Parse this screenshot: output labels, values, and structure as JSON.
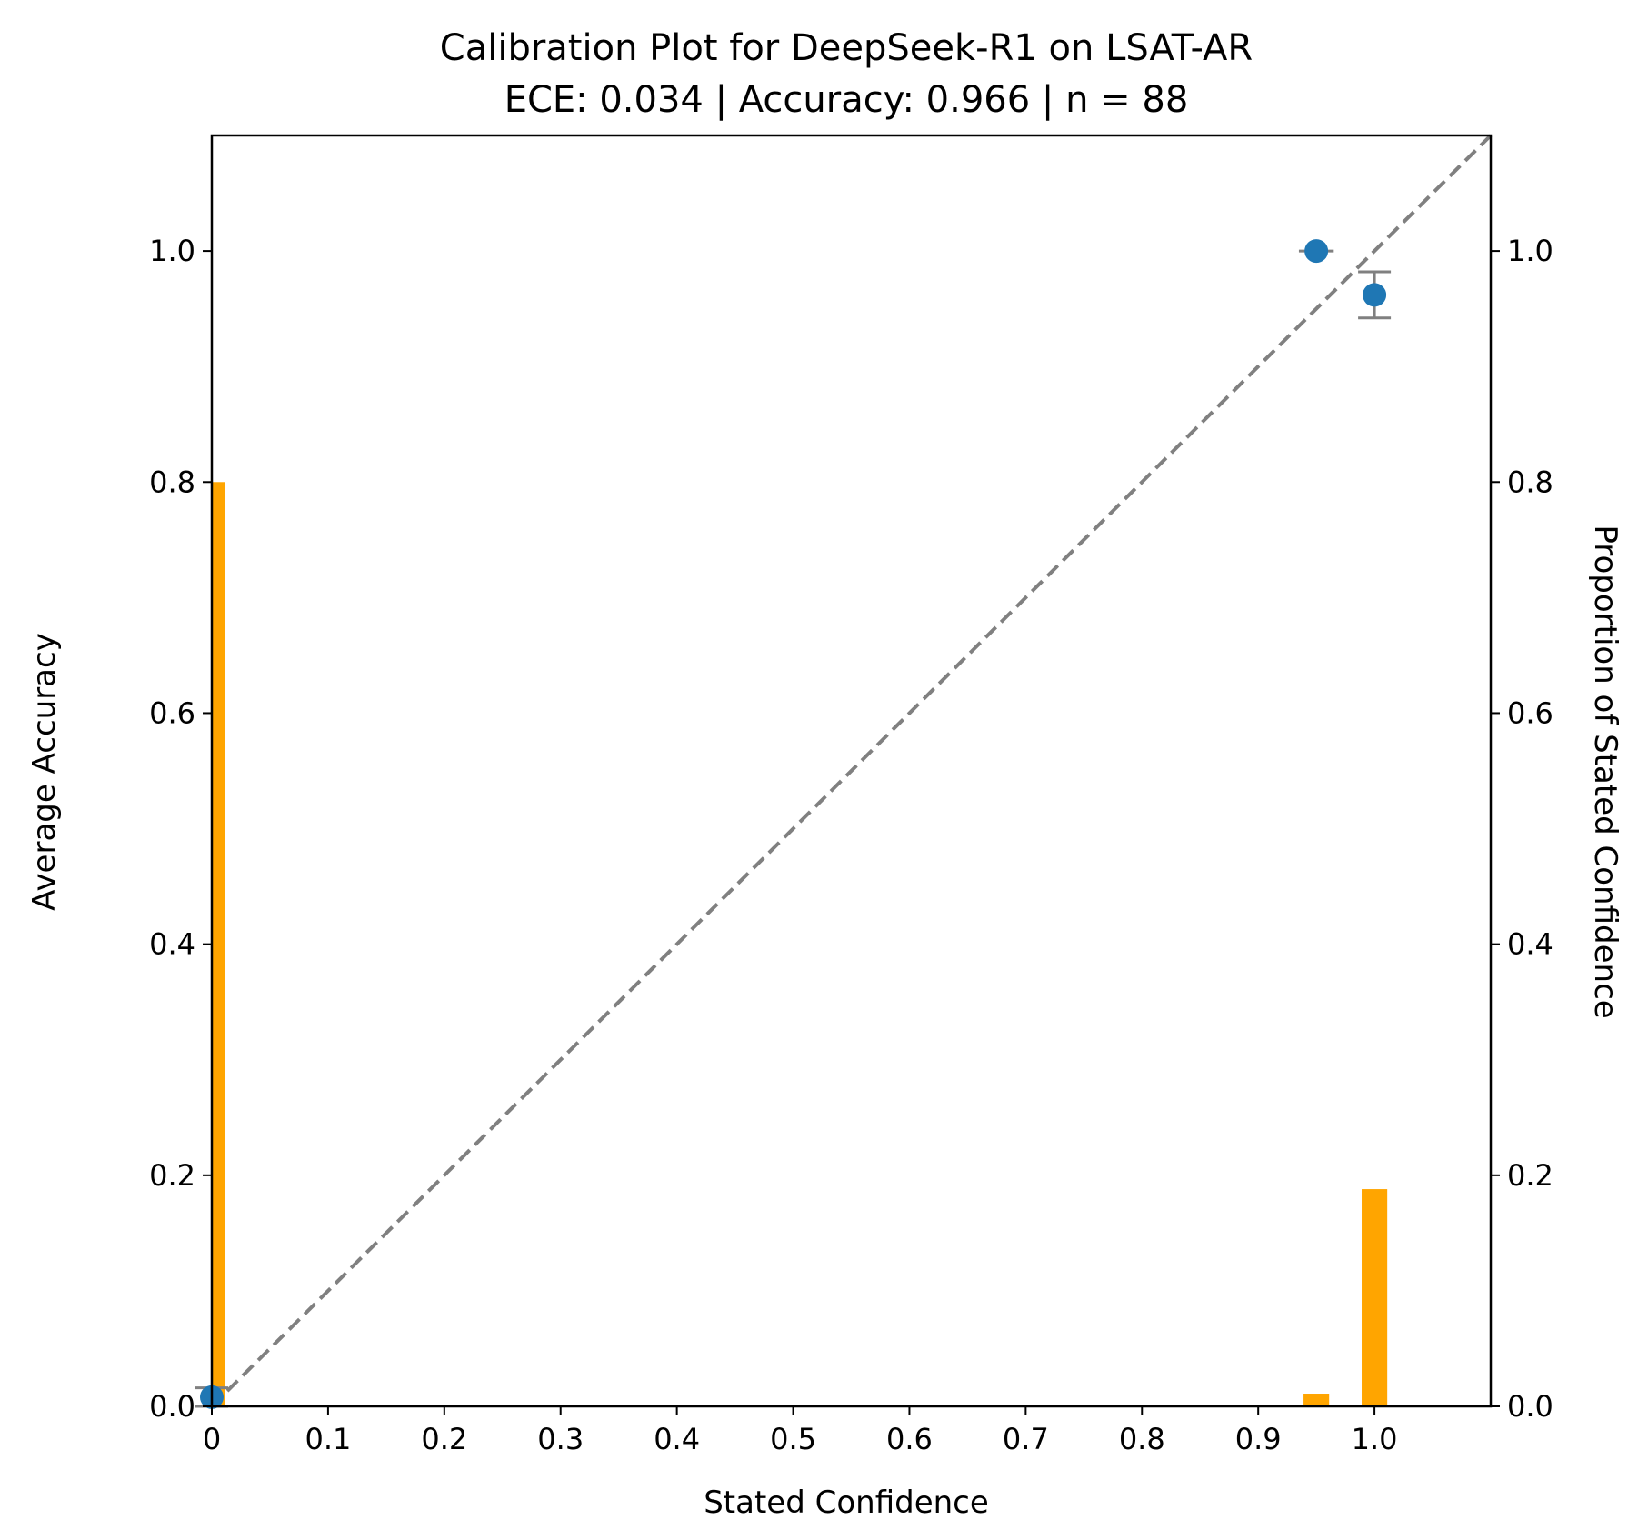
{
  "chart_data": {
    "type": "scatter",
    "title": "Calibration Plot for DeepSeek-R1 on LSAT-AR",
    "subtitle": "ECE: 0.034 | Accuracy: 0.966 | n = 88",
    "xlabel": "Stated Confidence",
    "ylabel": "Average Accuracy",
    "ylabel_right": "Proportion of Stated Confidence",
    "xlim": [
      0,
      1.1
    ],
    "ylim": [
      0,
      1.1
    ],
    "ylim_right": [
      0,
      1.1
    ],
    "x_ticks": [
      "0",
      "0.1",
      "0.2",
      "0.3",
      "0.4",
      "0.5",
      "0.6",
      "0.7",
      "0.8",
      "0.9",
      "1.0"
    ],
    "y_ticks": [
      "0.0",
      "0.2",
      "0.4",
      "0.6",
      "0.8",
      "1.0"
    ],
    "y_ticks_right": [
      "0.0",
      "0.2",
      "0.4",
      "0.6",
      "0.8",
      "1.0"
    ],
    "grid": false,
    "reference_line": {
      "from": [
        0,
        0
      ],
      "to": [
        1.1,
        1.1
      ],
      "style": "dashed",
      "color": "#808080"
    },
    "calibration_points": [
      {
        "x": 0.0,
        "y": 0.008,
        "yerr": 0.008,
        "xerr": 0.0
      },
      {
        "x": 0.95,
        "y": 1.0,
        "yerr": 0.0,
        "xerr": 0.015
      },
      {
        "x": 1.0,
        "y": 0.962,
        "yerr": 0.02,
        "xerr": 0.0
      }
    ],
    "proportion_bars": [
      {
        "x": 0.0,
        "value": 0.8
      },
      {
        "x": 0.95,
        "value": 0.011
      },
      {
        "x": 1.0,
        "value": 0.188
      }
    ],
    "colors": {
      "points": "#1f77b4",
      "bars": "#ffa500",
      "errorbars": "#808080",
      "reference": "#808080"
    }
  }
}
